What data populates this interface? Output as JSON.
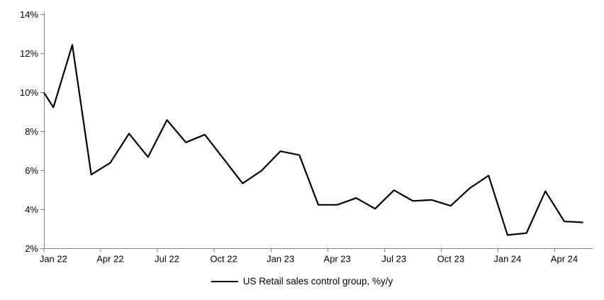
{
  "chart_data": {
    "type": "line",
    "title": "",
    "legend_label": "US Retail sales control group, %y/y",
    "legend_position": "bottom-center",
    "grid": false,
    "background_color": "#ffffff",
    "line_color": "#000000",
    "axis_color": "#808080",
    "ylim": [
      2,
      14
    ],
    "y_tick_labels": [
      "2%",
      "4%",
      "6%",
      "8%",
      "10%",
      "12%",
      "14%"
    ],
    "y_tick_values": [
      2,
      4,
      6,
      8,
      10,
      12,
      14
    ],
    "x_tick_labels": [
      "Jan 22",
      "Apr 22",
      "Jul 22",
      "Oct 22",
      "Jan 23",
      "Apr 23",
      "Jul 23",
      "Oct 23",
      "Jan 24",
      "Apr 24"
    ],
    "x_tick_every_n_months": 3,
    "points_between_ticks": true,
    "lead_in_value_at_left_axis": 10.0,
    "categories": [
      "Jan 22",
      "Feb 22",
      "Mar 22",
      "Apr 22",
      "May 22",
      "Jun 22",
      "Jul 22",
      "Aug 22",
      "Sep 22",
      "Oct 22",
      "Nov 22",
      "Dec 22",
      "Jan 23",
      "Feb 23",
      "Mar 23",
      "Apr 23",
      "May 23",
      "Jun 23",
      "Jul 23",
      "Aug 23",
      "Sep 23",
      "Oct 23",
      "Nov 23",
      "Dec 23",
      "Jan 24",
      "Feb 24",
      "Mar 24",
      "Apr 24",
      "May 24"
    ],
    "series": [
      {
        "name": "US Retail sales control group, %y/y",
        "values": [
          9.25,
          12.45,
          5.8,
          6.4,
          7.9,
          6.7,
          8.6,
          7.45,
          7.85,
          6.6,
          5.35,
          6.0,
          7.0,
          6.8,
          4.25,
          4.25,
          4.6,
          4.05,
          5.0,
          4.45,
          4.5,
          4.2,
          5.1,
          5.75,
          2.7,
          2.8,
          4.95,
          3.4,
          3.35
        ]
      }
    ]
  }
}
